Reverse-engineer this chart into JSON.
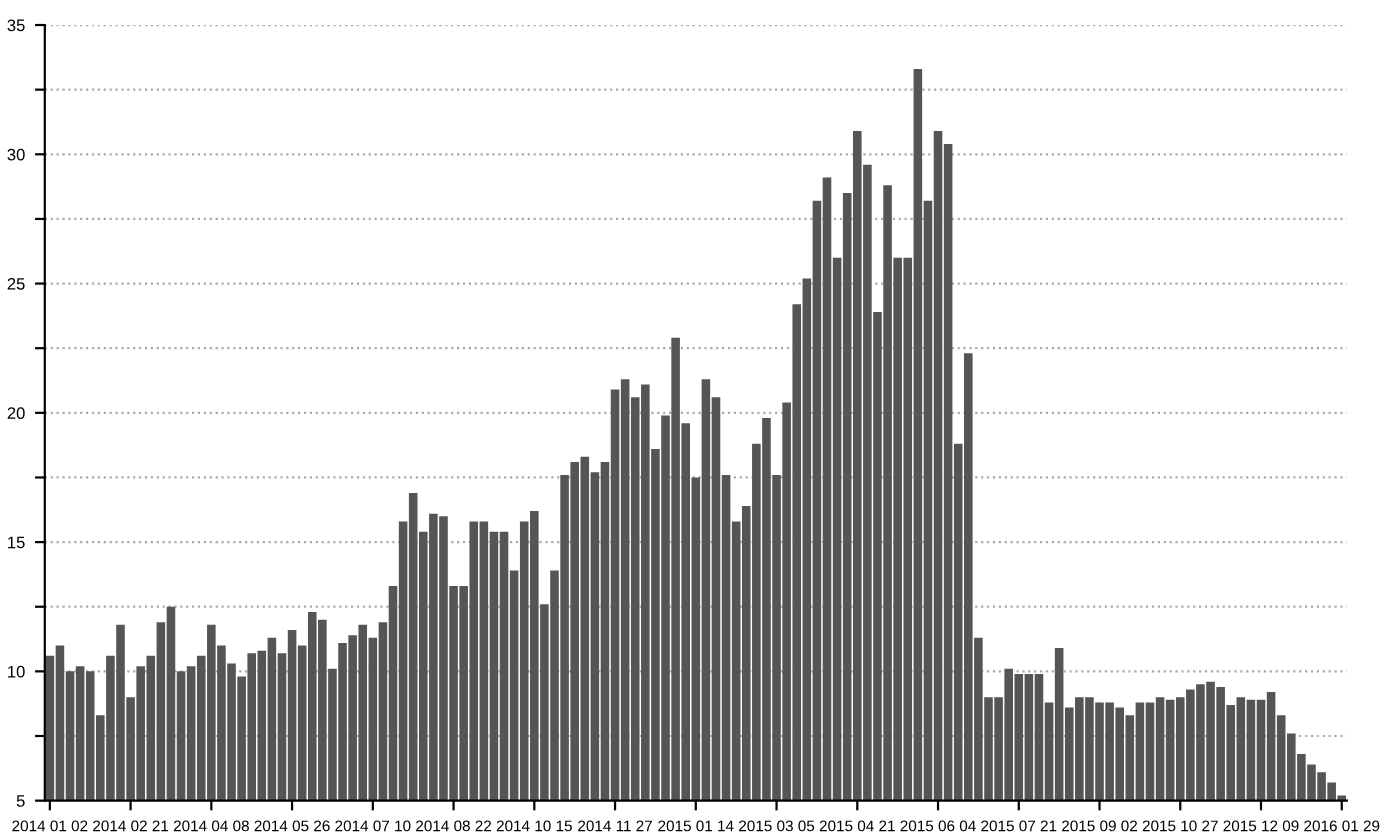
{
  "chart_data": {
    "type": "bar",
    "color": "#555555",
    "categories": [
      "2014 01 02",
      null,
      null,
      null,
      null,
      null,
      null,
      null,
      "2014 02 21",
      null,
      null,
      null,
      null,
      null,
      null,
      null,
      "2014 04 08",
      null,
      null,
      null,
      null,
      null,
      null,
      null,
      "2014 05 26",
      null,
      null,
      null,
      null,
      null,
      null,
      null,
      "2014 07 10",
      null,
      null,
      null,
      null,
      null,
      null,
      null,
      "2014 08 22",
      null,
      null,
      null,
      null,
      null,
      null,
      null,
      "2014 10 15",
      null,
      null,
      null,
      null,
      null,
      null,
      null,
      "2014 11 27",
      null,
      null,
      null,
      null,
      null,
      null,
      null,
      "2015 01 14",
      null,
      null,
      null,
      null,
      null,
      null,
      null,
      "2015 03 05",
      null,
      null,
      null,
      null,
      null,
      null,
      null,
      "2015 04 21",
      null,
      null,
      null,
      null,
      null,
      null,
      null,
      "2015 06 04",
      null,
      null,
      null,
      null,
      null,
      null,
      null,
      "2015 07 21",
      null,
      null,
      null,
      null,
      null,
      null,
      null,
      "2015 09 02",
      null,
      null,
      null,
      null,
      null,
      null,
      null,
      "2015 10 27",
      null,
      null,
      null,
      null,
      null,
      null,
      null,
      "2015 12 09",
      null,
      null,
      null,
      null,
      null,
      null,
      null,
      "2016 01 29"
    ],
    "values": [
      10.6,
      11,
      10,
      10.2,
      10,
      8.3,
      10.6,
      11.8,
      9,
      10.2,
      10.6,
      11.9,
      12.5,
      10,
      10.2,
      10.6,
      11.8,
      11,
      10.3,
      9.8,
      10.7,
      10.8,
      11.3,
      10.7,
      11.6,
      11,
      12.3,
      12,
      10.1,
      11.1,
      11.4,
      11.8,
      11.3,
      11.9,
      13.3,
      15.8,
      16.9,
      15.4,
      16.1,
      16,
      13.3,
      13.3,
      15.8,
      15.8,
      15.4,
      15.4,
      13.9,
      15.8,
      16.2,
      12.6,
      13.9,
      17.6,
      18.1,
      18.3,
      17.7,
      18.1,
      20.9,
      21.3,
      20.6,
      21.1,
      18.6,
      19.9,
      22.9,
      19.6,
      17.5,
      21.3,
      20.6,
      17.6,
      15.8,
      16.4,
      18.8,
      19.8,
      17.6,
      20.4,
      24.2,
      25.2,
      28.2,
      29.1,
      26,
      28.5,
      30.9,
      29.6,
      23.9,
      28.8,
      26,
      26,
      33.3,
      28.2,
      30.9,
      30.4,
      18.8,
      22.3,
      11.3,
      9,
      9,
      10.1,
      9.9,
      9.9,
      9.9,
      8.8,
      10.9,
      8.6,
      9,
      9,
      8.8,
      8.8,
      8.6,
      8.3,
      8.8,
      8.8,
      9,
      8.9,
      9,
      9.3,
      9.5,
      9.6,
      9.4,
      8.7,
      9,
      8.9,
      8.9,
      9.2,
      8.3,
      7.6,
      6.8,
      6.4,
      6.1,
      5.7,
      5.2
    ],
    "ylim": [
      5,
      35
    ],
    "yticks": [
      5,
      {
        "value": 7.5,
        "label": null
      },
      10,
      {
        "value": 12.5,
        "label": null
      },
      15,
      {
        "value": 17.5,
        "label": null
      },
      20,
      {
        "value": 22.5,
        "label": null
      },
      25,
      {
        "value": 27.5,
        "label": null
      },
      30,
      {
        "value": 32.5,
        "label": null
      },
      35
    ],
    "grid": "y",
    "line_style": "dotted"
  }
}
